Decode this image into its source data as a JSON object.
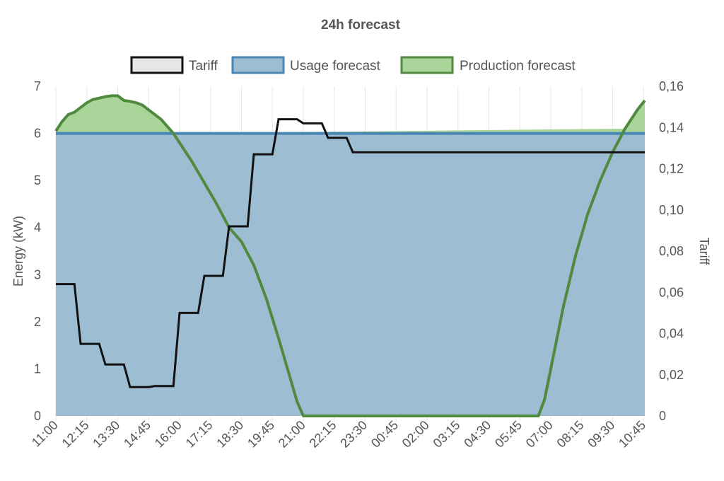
{
  "chart_data": {
    "type": "line",
    "title": "24h forecast",
    "ylabel": "Energy (kW)",
    "y2label": "Tariff",
    "ylim": [
      0,
      7
    ],
    "y2lim": [
      0,
      0.16
    ],
    "yticks": [
      "0",
      "1",
      "2",
      "3",
      "4",
      "5",
      "6",
      "7"
    ],
    "y2ticks": [
      "0",
      "0,02",
      "0,04",
      "0,06",
      "0,08",
      "0,10",
      "0,12",
      "0,14",
      "0,16"
    ],
    "xlim": [
      0,
      23.8
    ],
    "xticks": [
      {
        "t": 0,
        "label": "11:00"
      },
      {
        "t": 1.25,
        "label": "12:15"
      },
      {
        "t": 2.5,
        "label": "13:30"
      },
      {
        "t": 3.75,
        "label": "14:45"
      },
      {
        "t": 5,
        "label": "16:00"
      },
      {
        "t": 6.25,
        "label": "17:15"
      },
      {
        "t": 7.5,
        "label": "18:30"
      },
      {
        "t": 8.75,
        "label": "19:45"
      },
      {
        "t": 10,
        "label": "21:00"
      },
      {
        "t": 11.25,
        "label": "22:15"
      },
      {
        "t": 12.5,
        "label": "23:30"
      },
      {
        "t": 13.75,
        "label": "00:45"
      },
      {
        "t": 15,
        "label": "02:00"
      },
      {
        "t": 16.25,
        "label": "03:15"
      },
      {
        "t": 17.5,
        "label": "04:30"
      },
      {
        "t": 18.75,
        "label": "05:45"
      },
      {
        "t": 20,
        "label": "07:00"
      },
      {
        "t": 21.25,
        "label": "08:15"
      },
      {
        "t": 22.5,
        "label": "09:30"
      },
      {
        "t": 23.75,
        "label": "10:45"
      }
    ],
    "grid": true,
    "legend_position": "top-center",
    "colors": {
      "tariff": "#111111",
      "tariff_box": "#e6e6e6",
      "usage_line": "#4a86b4",
      "usage_fill": "#9dbdd3",
      "production_line": "#4f8a3f",
      "production_fill": "#a9d49a"
    },
    "legend": [
      "Tariff",
      "Usage forecast",
      "Production forecast"
    ],
    "series": [
      {
        "name": "Tariff",
        "axis": "right",
        "step": true,
        "points": [
          [
            0,
            0.064
          ],
          [
            0.75,
            0.064
          ],
          [
            1,
            0.035
          ],
          [
            1.75,
            0.035
          ],
          [
            2,
            0.025
          ],
          [
            2.75,
            0.025
          ],
          [
            3,
            0.014
          ],
          [
            3.75,
            0.014
          ],
          [
            4,
            0.0145
          ],
          [
            4.75,
            0.0145
          ],
          [
            5,
            0.05
          ],
          [
            5.75,
            0.05
          ],
          [
            6,
            0.068
          ],
          [
            6.75,
            0.068
          ],
          [
            7,
            0.092
          ],
          [
            7.75,
            0.092
          ],
          [
            8,
            0.127
          ],
          [
            8.75,
            0.127
          ],
          [
            9,
            0.144
          ],
          [
            9.75,
            0.144
          ],
          [
            10,
            0.142
          ],
          [
            10.75,
            0.142
          ],
          [
            11,
            0.135
          ],
          [
            11.75,
            0.135
          ],
          [
            12,
            0.128
          ],
          [
            23.8,
            0.128
          ]
        ]
      },
      {
        "name": "Usage forecast",
        "axis": "left",
        "points": [
          [
            0,
            6.0
          ],
          [
            23.8,
            6.0
          ]
        ]
      },
      {
        "name": "Production forecast",
        "axis": "left",
        "points": [
          [
            0,
            6.05
          ],
          [
            0.25,
            6.25
          ],
          [
            0.5,
            6.4
          ],
          [
            0.75,
            6.45
          ],
          [
            1,
            6.55
          ],
          [
            1.25,
            6.65
          ],
          [
            1.5,
            6.72
          ],
          [
            1.75,
            6.75
          ],
          [
            2,
            6.78
          ],
          [
            2.25,
            6.8
          ],
          [
            2.5,
            6.8
          ],
          [
            2.75,
            6.7
          ],
          [
            3,
            6.68
          ],
          [
            3.25,
            6.65
          ],
          [
            3.5,
            6.6
          ],
          [
            3.75,
            6.5
          ],
          [
            4,
            6.4
          ],
          [
            4.25,
            6.3
          ],
          [
            4.5,
            6.15
          ],
          [
            4.75,
            6.0
          ],
          [
            5,
            5.8
          ],
          [
            5.5,
            5.4
          ],
          [
            6,
            4.95
          ],
          [
            6.5,
            4.5
          ],
          [
            7,
            4.0
          ],
          [
            7.5,
            3.7
          ],
          [
            8,
            3.2
          ],
          [
            8.5,
            2.5
          ],
          [
            9,
            1.65
          ],
          [
            9.5,
            0.75
          ],
          [
            9.75,
            0.3
          ],
          [
            10,
            0.0
          ],
          [
            19.5,
            0.0
          ],
          [
            19.75,
            0.35
          ],
          [
            20,
            1.0
          ],
          [
            20.5,
            2.3
          ],
          [
            21,
            3.4
          ],
          [
            21.5,
            4.3
          ],
          [
            22,
            5.0
          ],
          [
            22.5,
            5.6
          ],
          [
            23,
            6.1
          ],
          [
            23.5,
            6.5
          ],
          [
            23.8,
            6.7
          ]
        ]
      }
    ]
  }
}
